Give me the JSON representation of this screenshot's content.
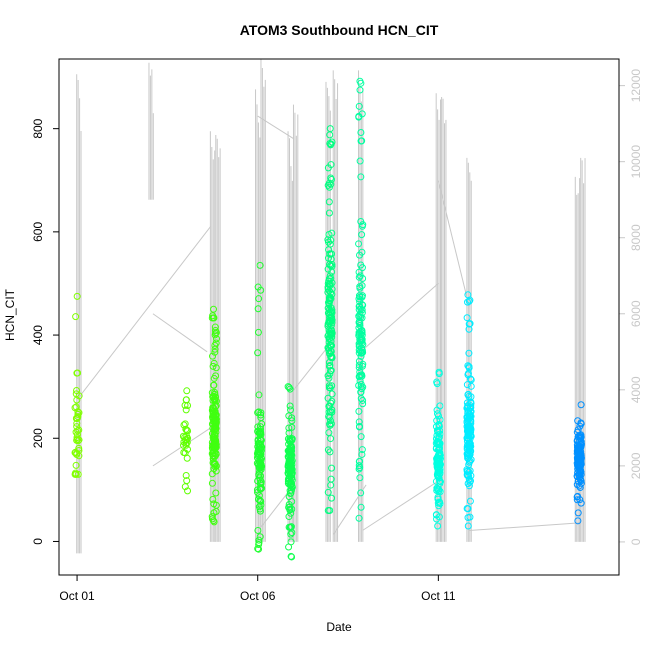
{
  "chart_data": {
    "type": "scatter",
    "title": "ATOM3 Southbound HCN_CIT",
    "xlabel": "Date",
    "ylabel": "HCN_CIT",
    "x_tick_labels": [
      "Oct 01",
      "Oct 06",
      "Oct 11"
    ],
    "x_tick_days": [
      1,
      6,
      11
    ],
    "xlim_days": [
      0.5,
      16
    ],
    "ylim": [
      -65,
      935
    ],
    "y_ticks": [
      0,
      200,
      400,
      600,
      800
    ],
    "y2_ticks": [
      0,
      2000,
      4000,
      6000,
      8000,
      10000,
      12000
    ],
    "y2lim": [
      -870,
      12700
    ],
    "y2_color": "#c8c8c8",
    "grid": false,
    "point_style": "open-circle",
    "line_color": "#c8c8c8",
    "line_series_note": "",
    "flights": [
      {
        "day": 1.0,
        "color": "#80ff00",
        "ymin": 130,
        "ymax": 475,
        "n": 40,
        "center": 210,
        "spread": 90
      },
      {
        "day": 4.0,
        "color": "#60ff00",
        "ymin": 98,
        "ymax": 292,
        "n": 30,
        "center": 195,
        "spread": 50
      },
      {
        "day": 4.8,
        "color": "#40ff10",
        "ymin": 38,
        "ymax": 450,
        "n": 150,
        "center": 230,
        "spread": 70
      },
      {
        "day": 6.05,
        "color": "#20ff30",
        "ymin": -15,
        "ymax": 535,
        "n": 110,
        "center": 160,
        "spread": 70
      },
      {
        "day": 6.9,
        "color": "#10ff50",
        "ymin": -30,
        "ymax": 300,
        "n": 130,
        "center": 150,
        "spread": 60
      },
      {
        "day": 8.0,
        "color": "#00ff80",
        "ymin": 60,
        "ymax": 800,
        "n": 160,
        "center": 420,
        "spread": 170
      },
      {
        "day": 8.85,
        "color": "#00ffa0",
        "ymin": 45,
        "ymax": 892,
        "n": 120,
        "center": 400,
        "spread": 170
      },
      {
        "day": 11.0,
        "color": "#00ffe0",
        "ymin": 30,
        "ymax": 328,
        "n": 110,
        "center": 160,
        "spread": 70
      },
      {
        "day": 11.85,
        "color": "#00ecff",
        "ymin": 30,
        "ymax": 478,
        "n": 140,
        "center": 210,
        "spread": 80
      },
      {
        "day": 14.9,
        "color": "#0090ff",
        "ymin": 40,
        "ymax": 265,
        "n": 130,
        "center": 160,
        "spread": 45
      }
    ],
    "secondary_line": {
      "columns": [
        {
          "day": 1.05,
          "ymin": -300,
          "ymax": 12300
        },
        {
          "day": 3.05,
          "ymin": 9000,
          "ymax": 12600
        },
        {
          "day": 4.75,
          "ymin": 0,
          "ymax": 10800
        },
        {
          "day": 4.9,
          "ymin": 0,
          "ymax": 10700
        },
        {
          "day": 6.0,
          "ymin": 0,
          "ymax": 11900
        },
        {
          "day": 6.15,
          "ymin": 0,
          "ymax": 12700
        },
        {
          "day": 6.9,
          "ymin": 0,
          "ymax": 10800
        },
        {
          "day": 7.05,
          "ymin": 0,
          "ymax": 11500
        },
        {
          "day": 7.95,
          "ymin": 0,
          "ymax": 12100
        },
        {
          "day": 8.15,
          "ymin": 0,
          "ymax": 12400
        },
        {
          "day": 8.85,
          "ymin": 0,
          "ymax": 12400
        },
        {
          "day": 11.0,
          "ymin": 0,
          "ymax": 11800
        },
        {
          "day": 11.15,
          "ymin": 0,
          "ymax": 11700
        },
        {
          "day": 11.85,
          "ymin": 0,
          "ymax": 10100
        },
        {
          "day": 14.85,
          "ymin": 0,
          "ymax": 9600
        },
        {
          "day": 15.0,
          "ymin": 0,
          "ymax": 10100
        }
      ],
      "connectors": [
        [
          [
            1.05,
            3800
          ],
          [
            4.7,
            8300
          ]
        ],
        [
          [
            3.1,
            6000
          ],
          [
            4.6,
            5000
          ]
        ],
        [
          [
            3.1,
            2000
          ],
          [
            4.7,
            3000
          ]
        ],
        [
          [
            6.0,
            11200
          ],
          [
            7.0,
            10600
          ]
        ],
        [
          [
            6.1,
            400
          ],
          [
            7.0,
            1500
          ]
        ],
        [
          [
            7.0,
            4000
          ],
          [
            8.0,
            5200
          ]
        ],
        [
          [
            8.1,
            200
          ],
          [
            9.0,
            1500
          ]
        ],
        [
          [
            8.85,
            5000
          ],
          [
            11.0,
            6800
          ]
        ],
        [
          [
            11.0,
            9500
          ],
          [
            11.85,
            6200
          ]
        ],
        [
          [
            11.85,
            300
          ],
          [
            14.9,
            500
          ]
        ],
        [
          [
            8.9,
            300
          ],
          [
            11.0,
            1600
          ]
        ]
      ]
    }
  }
}
